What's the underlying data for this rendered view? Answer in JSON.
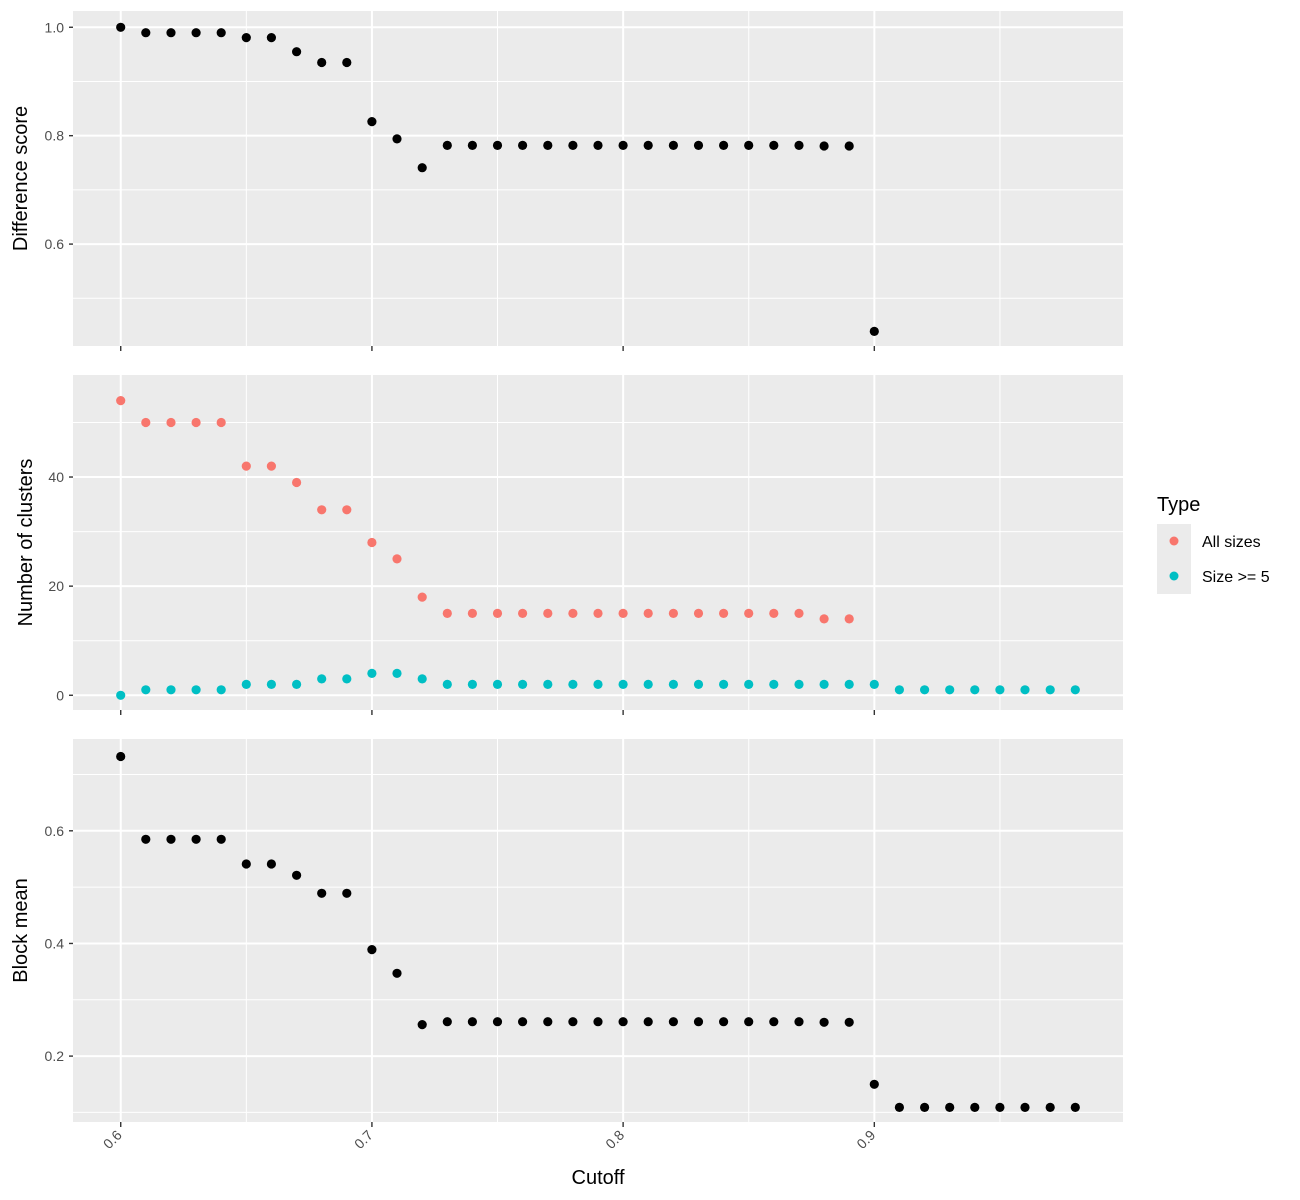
{
  "chart_data": [
    {
      "type": "scatter",
      "ylabel": "Difference score",
      "xlabel": "",
      "xlim": [
        0.581,
        0.999
      ],
      "ylim": [
        0.412,
        1.03
      ],
      "yticks": [
        0.6,
        0.8,
        1.0
      ],
      "ytick_labels": [
        "0.6",
        "0.8",
        "1.0"
      ],
      "series": [
        {
          "color": "#000000",
          "x": [
            0.6,
            0.61,
            0.62,
            0.63,
            0.64,
            0.65,
            0.66,
            0.67,
            0.68,
            0.69,
            0.7,
            0.71,
            0.72,
            0.73,
            0.74,
            0.75,
            0.76,
            0.77,
            0.78,
            0.79,
            0.8,
            0.81,
            0.82,
            0.83,
            0.84,
            0.85,
            0.86,
            0.87,
            0.88,
            0.89,
            0.9
          ],
          "y": [
            1.0,
            0.99,
            0.99,
            0.99,
            0.99,
            0.981,
            0.981,
            0.955,
            0.935,
            0.935,
            0.826,
            0.794,
            0.741,
            0.782,
            0.782,
            0.782,
            0.782,
            0.782,
            0.782,
            0.782,
            0.782,
            0.782,
            0.782,
            0.782,
            0.782,
            0.782,
            0.782,
            0.782,
            0.781,
            0.781,
            0.439
          ]
        }
      ]
    },
    {
      "type": "scatter",
      "ylabel": "Number of clusters",
      "xlabel": "",
      "xlim": [
        0.581,
        0.999
      ],
      "ylim": [
        -2.7,
        58.7
      ],
      "yticks": [
        0,
        20,
        40
      ],
      "ytick_labels": [
        "0",
        "20",
        "40"
      ],
      "series": [
        {
          "name": "All sizes",
          "color": "#F8766D",
          "x": [
            0.6,
            0.61,
            0.62,
            0.63,
            0.64,
            0.65,
            0.66,
            0.67,
            0.68,
            0.69,
            0.7,
            0.71,
            0.72,
            0.73,
            0.74,
            0.75,
            0.76,
            0.77,
            0.78,
            0.79,
            0.8,
            0.81,
            0.82,
            0.83,
            0.84,
            0.85,
            0.86,
            0.87,
            0.88,
            0.89
          ],
          "y": [
            54,
            50,
            50,
            50,
            50,
            42,
            42,
            39,
            34,
            34,
            28,
            25,
            18,
            15,
            15,
            15,
            15,
            15,
            15,
            15,
            15,
            15,
            15,
            15,
            15,
            15,
            15,
            15,
            14,
            14
          ]
        },
        {
          "name": "Size >= 5",
          "color": "#00BFC4",
          "x": [
            0.6,
            0.61,
            0.62,
            0.63,
            0.64,
            0.65,
            0.66,
            0.67,
            0.68,
            0.69,
            0.7,
            0.71,
            0.72,
            0.73,
            0.74,
            0.75,
            0.76,
            0.77,
            0.78,
            0.79,
            0.8,
            0.81,
            0.82,
            0.83,
            0.84,
            0.85,
            0.86,
            0.87,
            0.88,
            0.89,
            0.9,
            0.91,
            0.92,
            0.93,
            0.94,
            0.95,
            0.96,
            0.97,
            0.98
          ],
          "y": [
            0,
            1,
            1,
            1,
            1,
            2,
            2,
            2,
            3,
            3,
            4,
            4,
            3,
            2,
            2,
            2,
            2,
            2,
            2,
            2,
            2,
            2,
            2,
            2,
            2,
            2,
            2,
            2,
            2,
            2,
            2,
            1,
            1,
            1,
            1,
            1,
            1,
            1,
            1
          ]
        }
      ],
      "legend": {
        "title": "Type",
        "position": "right",
        "entries": [
          "All sizes",
          "Size >= 5"
        ]
      }
    },
    {
      "type": "scatter",
      "ylabel": "Block mean",
      "xlabel": "Cutoff",
      "xlim": [
        0.581,
        0.999
      ],
      "ylim": [
        0.083,
        0.763
      ],
      "yticks": [
        0.2,
        0.4,
        0.6
      ],
      "ytick_labels": [
        "0.2",
        "0.4",
        "0.6"
      ],
      "xticks": [
        0.6,
        0.7,
        0.8,
        0.9
      ],
      "xtick_labels": [
        "0.6",
        "0.7",
        "0.8",
        "0.9"
      ],
      "series": [
        {
          "color": "#000000",
          "x": [
            0.6,
            0.61,
            0.62,
            0.63,
            0.64,
            0.65,
            0.66,
            0.67,
            0.68,
            0.69,
            0.7,
            0.71,
            0.72,
            0.73,
            0.74,
            0.75,
            0.76,
            0.77,
            0.78,
            0.79,
            0.8,
            0.81,
            0.82,
            0.83,
            0.84,
            0.85,
            0.86,
            0.87,
            0.88,
            0.89,
            0.9,
            0.91,
            0.92,
            0.93,
            0.94,
            0.95,
            0.96,
            0.97,
            0.98
          ],
          "y": [
            0.732,
            0.585,
            0.585,
            0.585,
            0.585,
            0.541,
            0.541,
            0.521,
            0.489,
            0.489,
            0.389,
            0.347,
            0.256,
            0.261,
            0.261,
            0.261,
            0.261,
            0.261,
            0.261,
            0.261,
            0.261,
            0.261,
            0.261,
            0.261,
            0.261,
            0.261,
            0.261,
            0.261,
            0.26,
            0.26,
            0.15,
            0.109,
            0.109,
            0.109,
            0.109,
            0.109,
            0.109,
            0.109,
            0.109
          ]
        }
      ]
    }
  ]
}
